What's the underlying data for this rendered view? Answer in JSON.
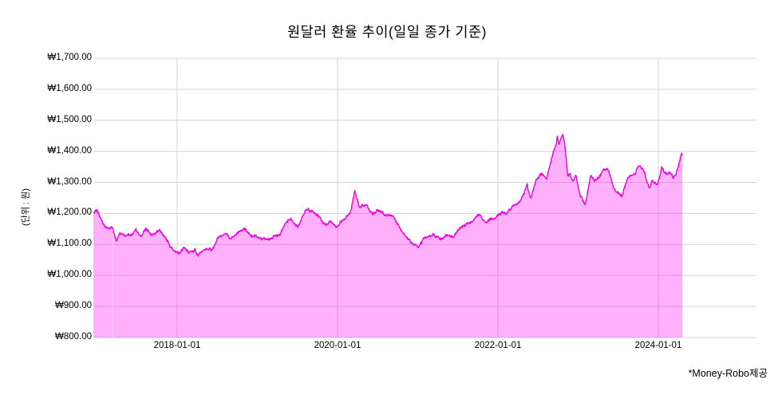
{
  "title": "원달러 환율 추이(일일 종가 기준)",
  "footer": "*Money-Robo제공",
  "colors": {
    "line": "#EE00DD",
    "fill": "rgba(255,0,238,0.31)",
    "grid": "#D4D4D4",
    "text": "#000000",
    "background": "#FFFFFF"
  },
  "chart_data": {
    "type": "area",
    "title": "원달러 환율 추이(일일 종가 기준)",
    "ylabel": "(단위 : 원)",
    "xlabel": "",
    "legend": "none",
    "grid": true,
    "ylim": [
      800,
      1700
    ],
    "xlim": [
      "2016-12-15",
      "2024-04-19"
    ],
    "y_ticks": [
      {
        "value": 1700,
        "label": "₩1,700.00"
      },
      {
        "value": 1600,
        "label": "₩1,600.00"
      },
      {
        "value": 1500,
        "label": "₩1,500.00"
      },
      {
        "value": 1400,
        "label": "₩1,400.00"
      },
      {
        "value": 1300,
        "label": "₩1,300.00"
      },
      {
        "value": 1200,
        "label": "₩1,200.00"
      },
      {
        "value": 1100,
        "label": "₩1,100.00"
      },
      {
        "value": 1000,
        "label": "₩1,000.00"
      },
      {
        "value": 900,
        "label": "₩900.00"
      },
      {
        "value": 800,
        "label": "₩800.00"
      }
    ],
    "x_ticks": [
      {
        "date": "2018-01-01",
        "label": "2018-01-01"
      },
      {
        "date": "2020-01-01",
        "label": "2020-01-01"
      },
      {
        "date": "2022-01-01",
        "label": "2022-01-01"
      },
      {
        "date": "2024-01-01",
        "label": "2024-01-01"
      }
    ],
    "series": {
      "anchors": [
        [
          "2016-12-15",
          1206
        ],
        [
          "2017-01-02",
          1206
        ],
        [
          "2017-01-31",
          1158
        ],
        [
          "2017-02-15",
          1146
        ],
        [
          "2017-03-10",
          1152
        ],
        [
          "2017-03-28",
          1112
        ],
        [
          "2017-04-14",
          1136
        ],
        [
          "2017-05-10",
          1122
        ],
        [
          "2017-06-05",
          1122
        ],
        [
          "2017-06-26",
          1144
        ],
        [
          "2017-07-20",
          1120
        ],
        [
          "2017-08-10",
          1142
        ],
        [
          "2017-09-05",
          1122
        ],
        [
          "2017-10-12",
          1138
        ],
        [
          "2017-11-10",
          1110
        ],
        [
          "2017-12-05",
          1084
        ],
        [
          "2018-01-08",
          1064
        ],
        [
          "2018-02-05",
          1082
        ],
        [
          "2018-02-25",
          1068
        ],
        [
          "2018-03-20",
          1078
        ],
        [
          "2018-04-03",
          1056
        ],
        [
          "2018-05-01",
          1074
        ],
        [
          "2018-06-15",
          1078
        ],
        [
          "2018-07-02",
          1114
        ],
        [
          "2018-08-10",
          1126
        ],
        [
          "2018-09-05",
          1112
        ],
        [
          "2018-10-10",
          1134
        ],
        [
          "2018-11-05",
          1142
        ],
        [
          "2018-12-05",
          1118
        ],
        [
          "2019-01-10",
          1118
        ],
        [
          "2019-02-10",
          1124
        ],
        [
          "2019-03-10",
          1130
        ],
        [
          "2019-04-10",
          1138
        ],
        [
          "2019-05-10",
          1180
        ],
        [
          "2019-06-01",
          1190
        ],
        [
          "2019-07-01",
          1164
        ],
        [
          "2019-08-06",
          1216
        ],
        [
          "2019-09-03",
          1208
        ],
        [
          "2019-10-01",
          1196
        ],
        [
          "2019-11-05",
          1158
        ],
        [
          "2019-12-02",
          1180
        ],
        [
          "2020-01-02",
          1156
        ],
        [
          "2020-02-10",
          1188
        ],
        [
          "2020-03-01",
          1210
        ],
        [
          "2020-03-19",
          1278
        ],
        [
          "2020-04-10",
          1222
        ],
        [
          "2020-05-10",
          1230
        ],
        [
          "2020-06-10",
          1196
        ],
        [
          "2020-07-10",
          1204
        ],
        [
          "2020-08-10",
          1184
        ],
        [
          "2020-09-10",
          1186
        ],
        [
          "2020-10-10",
          1146
        ],
        [
          "2020-11-10",
          1114
        ],
        [
          "2020-12-10",
          1092
        ],
        [
          "2021-01-05",
          1086
        ],
        [
          "2021-02-05",
          1120
        ],
        [
          "2021-03-10",
          1134
        ],
        [
          "2021-04-10",
          1118
        ],
        [
          "2021-05-10",
          1122
        ],
        [
          "2021-06-10",
          1114
        ],
        [
          "2021-07-10",
          1144
        ],
        [
          "2021-08-10",
          1158
        ],
        [
          "2021-09-10",
          1168
        ],
        [
          "2021-10-12",
          1194
        ],
        [
          "2021-11-10",
          1178
        ],
        [
          "2021-12-10",
          1186
        ],
        [
          "2022-01-10",
          1198
        ],
        [
          "2022-02-10",
          1198
        ],
        [
          "2022-03-10",
          1222
        ],
        [
          "2022-04-10",
          1232
        ],
        [
          "2022-05-12",
          1284
        ],
        [
          "2022-05-30",
          1240
        ],
        [
          "2022-06-23",
          1300
        ],
        [
          "2022-07-15",
          1320
        ],
        [
          "2022-08-10",
          1302
        ],
        [
          "2022-08-23",
          1342
        ],
        [
          "2022-09-07",
          1384
        ],
        [
          "2022-09-22",
          1410
        ],
        [
          "2022-09-28",
          1440
        ],
        [
          "2022-10-04",
          1412
        ],
        [
          "2022-10-14",
          1436
        ],
        [
          "2022-10-25",
          1444
        ],
        [
          "2022-11-04",
          1404
        ],
        [
          "2022-11-14",
          1326
        ],
        [
          "2022-11-24",
          1338
        ],
        [
          "2022-12-07",
          1302
        ],
        [
          "2022-12-20",
          1320
        ],
        [
          "2023-01-10",
          1248
        ],
        [
          "2023-02-02",
          1226
        ],
        [
          "2023-02-28",
          1322
        ],
        [
          "2023-03-15",
          1302
        ],
        [
          "2023-04-05",
          1314
        ],
        [
          "2023-04-28",
          1340
        ],
        [
          "2023-05-17",
          1338
        ],
        [
          "2023-06-10",
          1288
        ],
        [
          "2023-07-18",
          1264
        ],
        [
          "2023-08-10",
          1310
        ],
        [
          "2023-08-29",
          1324
        ],
        [
          "2023-09-15",
          1330
        ],
        [
          "2023-10-04",
          1356
        ],
        [
          "2023-10-25",
          1350
        ],
        [
          "2023-11-10",
          1310
        ],
        [
          "2023-11-21",
          1288
        ],
        [
          "2023-12-05",
          1304
        ],
        [
          "2023-12-28",
          1288
        ],
        [
          "2024-01-17",
          1344
        ],
        [
          "2024-02-05",
          1330
        ],
        [
          "2024-02-20",
          1336
        ],
        [
          "2024-03-08",
          1320
        ],
        [
          "2024-03-21",
          1330
        ],
        [
          "2024-04-01",
          1352
        ],
        [
          "2024-04-16",
          1398
        ],
        [
          "2024-04-19",
          1386
        ]
      ]
    },
    "fill_seam_date": "2017-03-13",
    "render_noise": {
      "seed": 42,
      "step_days": 2,
      "walk_step": 5,
      "walk_max": 10,
      "jitter": 7
    }
  }
}
